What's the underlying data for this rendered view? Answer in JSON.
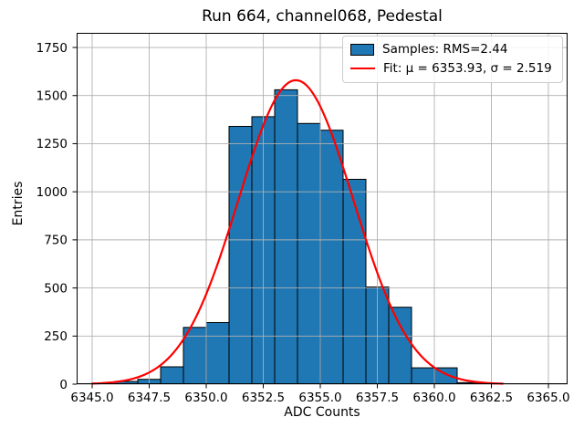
{
  "figure": {
    "title": "Run 664, channel068, Pedestal",
    "xlabel": "ADC Counts",
    "ylabel": "Entries",
    "legend": {
      "samples_label": "Samples: RMS=2.44",
      "fit_label": "Fit: μ = 6353.93, σ = 2.519"
    }
  },
  "chart_data": {
    "type": "bar",
    "subtype": "histogram_with_gaussian_fit",
    "title": "Run 664, channel068, Pedestal",
    "xlabel": "ADC Counts",
    "ylabel": "Entries",
    "xlim": [
      6344.32,
      6365.84
    ],
    "ylim": [
      0,
      1826
    ],
    "x_ticks": [
      6345.0,
      6347.5,
      6350.0,
      6352.5,
      6355.0,
      6357.5,
      6360.0,
      6362.5,
      6365.0
    ],
    "x_tick_labels": [
      "6345.0",
      "6347.5",
      "6350.0",
      "6352.5",
      "6355.0",
      "6357.5",
      "6360.0",
      "6362.5",
      "6365.0"
    ],
    "y_ticks": [
      0,
      250,
      500,
      750,
      1000,
      1250,
      1500,
      1750
    ],
    "y_tick_labels": [
      "0",
      "250",
      "500",
      "750",
      "1000",
      "1250",
      "1500",
      "1750"
    ],
    "grid": true,
    "grid_above_bars": true,
    "legend_position": "upper right",
    "series": [
      {
        "name": "Samples: RMS=2.44",
        "kind": "histogram",
        "bin_edges": [
          6346,
          6347,
          6348,
          6349,
          6350,
          6351,
          6352,
          6353,
          6354,
          6355,
          6356,
          6357,
          6358,
          6359,
          6360,
          6361,
          6362
        ],
        "counts": [
          14,
          25,
          90,
          295,
          320,
          1340,
          1390,
          1530,
          1355,
          1320,
          1065,
          505,
          400,
          85,
          85,
          8
        ],
        "rms": 2.44,
        "fill_color": "#1f77b4",
        "edge_color": "#000000"
      },
      {
        "name": "Fit: μ = 6353.93, σ = 2.519",
        "kind": "gaussian_curve",
        "mu": 6353.93,
        "sigma": 2.519,
        "peak": 1580,
        "x_range": [
          6345.0,
          6363.0
        ],
        "color": "#ff0000",
        "line_width": 2.2
      }
    ],
    "colors": {
      "background": "#ffffff",
      "grid": "#b0b0b0",
      "spine": "#000000",
      "tick_label": "#000000"
    }
  }
}
